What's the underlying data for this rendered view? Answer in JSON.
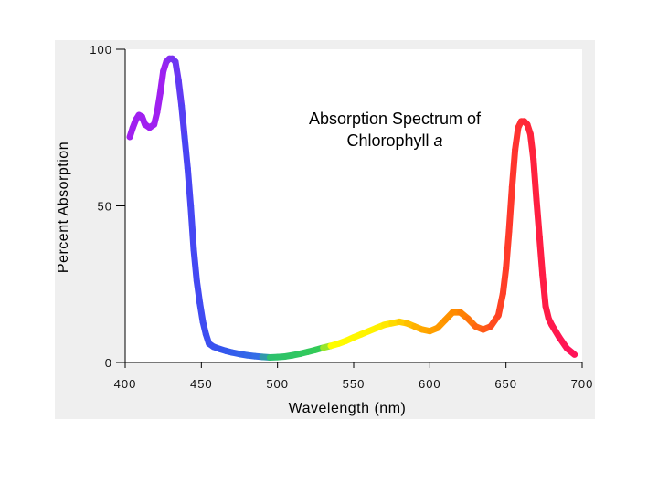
{
  "chart_data": {
    "type": "line",
    "title_line1": "Absorption Spectrum of",
    "title_line2_prefix": "Chlorophyll ",
    "title_line2_italic": "a",
    "xlabel": "Wavelength (nm)",
    "ylabel": "Percent Absorption",
    "xlim": [
      400,
      700
    ],
    "ylim": [
      0,
      100
    ],
    "xticks": [
      400,
      450,
      500,
      550,
      600,
      650,
      700
    ],
    "xtick_labels": [
      "400",
      "450",
      "500",
      "550",
      "600",
      "650",
      "700"
    ],
    "yticks": [
      0,
      50,
      100
    ],
    "ytick_labels": [
      "0",
      "50",
      "100"
    ],
    "grid": false,
    "series": [
      {
        "x": [
          403,
          405,
          407,
          409,
          411,
          413,
          416,
          419,
          421,
          423,
          425,
          427,
          429,
          431,
          433,
          435,
          437,
          439,
          441,
          443,
          445,
          447,
          449,
          451,
          453,
          455,
          458,
          462,
          466,
          470,
          475,
          480,
          485,
          490,
          495,
          500,
          505,
          510,
          515,
          520,
          525,
          530,
          535,
          540,
          545,
          550,
          555,
          560,
          565,
          570,
          575,
          580,
          585,
          590,
          595,
          600,
          605,
          610,
          615,
          620,
          625,
          630,
          635,
          640,
          645,
          648,
          650,
          652,
          654,
          656,
          658,
          660,
          662,
          664,
          666,
          668,
          670,
          672,
          674,
          676,
          678,
          680,
          685,
          690,
          695
        ],
        "y": [
          72,
          75,
          77.5,
          79,
          78.5,
          76,
          75,
          76,
          80,
          86,
          93,
          96,
          97,
          97,
          96,
          90,
          82,
          72,
          62,
          50,
          36,
          26,
          19,
          13,
          9,
          6,
          5,
          4.3,
          3.7,
          3.2,
          2.7,
          2.3,
          2,
          1.8,
          1.6,
          1.7,
          1.9,
          2.3,
          2.8,
          3.4,
          4,
          4.7,
          5.3,
          6,
          6.9,
          8,
          9,
          10,
          11,
          12,
          12.5,
          13,
          12.5,
          11.5,
          10.5,
          10,
          11,
          13.5,
          16,
          16,
          14,
          11.5,
          10.5,
          11.5,
          15,
          22,
          30,
          42,
          56,
          68,
          75,
          77,
          77,
          76,
          73,
          65,
          52,
          40,
          28,
          18,
          14,
          12,
          8,
          4.5,
          2.5
        ],
        "colors": [
          {
            "x": 400,
            "color": "#a020f0"
          },
          {
            "x": 425,
            "color": "#a020f0"
          },
          {
            "x": 440,
            "color": "#4a44f4"
          },
          {
            "x": 465,
            "color": "#3355ee"
          },
          {
            "x": 490,
            "color": "#3370e6"
          },
          {
            "x": 495,
            "color": "#2cc070"
          },
          {
            "x": 530,
            "color": "#33cc55"
          },
          {
            "x": 535,
            "color": "#ffff00"
          },
          {
            "x": 570,
            "color": "#ffee00"
          },
          {
            "x": 595,
            "color": "#ffaa00"
          },
          {
            "x": 620,
            "color": "#ff8800"
          },
          {
            "x": 645,
            "color": "#ff4422"
          },
          {
            "x": 670,
            "color": "#ff2040"
          },
          {
            "x": 700,
            "color": "#ff1060"
          }
        ]
      }
    ]
  }
}
